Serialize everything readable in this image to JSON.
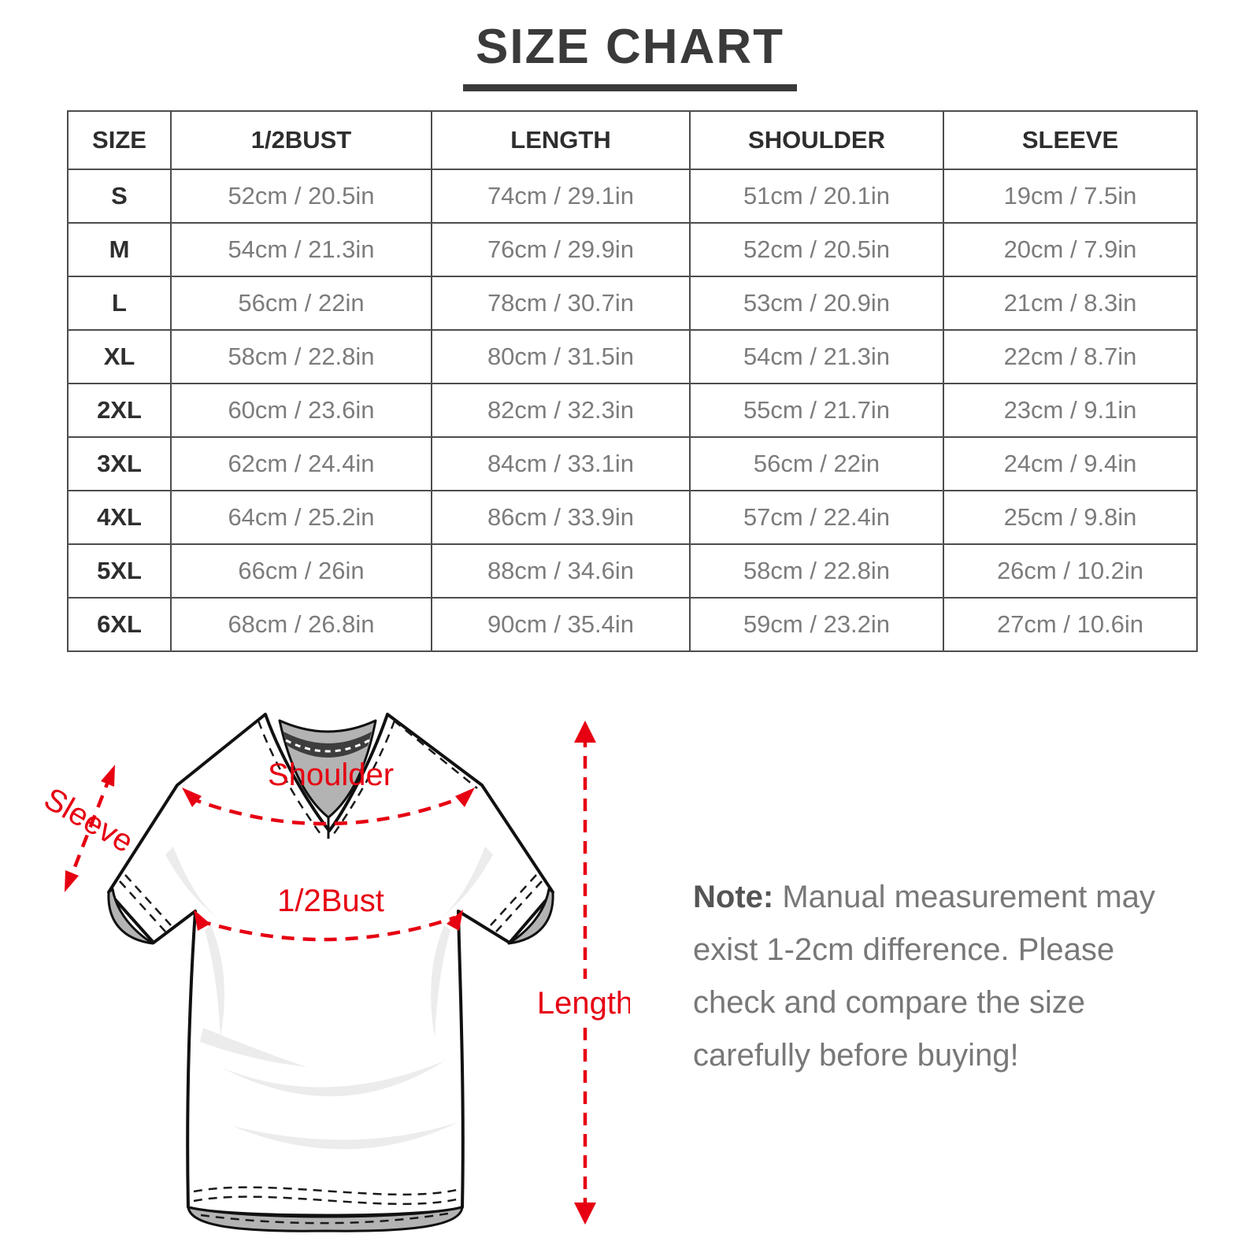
{
  "title": "SIZE CHART",
  "chart_data": {
    "type": "table",
    "title": "SIZE CHART",
    "columns": [
      "SIZE",
      "1/2BUST",
      "LENGTH",
      "SHOULDER",
      "SLEEVE"
    ],
    "rows": [
      [
        "S",
        "52cm / 20.5in",
        "74cm / 29.1in",
        "51cm / 20.1in",
        "19cm / 7.5in"
      ],
      [
        "M",
        "54cm / 21.3in",
        "76cm / 29.9in",
        "52cm / 20.5in",
        "20cm / 7.9in"
      ],
      [
        "L",
        "56cm / 22in",
        "78cm / 30.7in",
        "53cm / 20.9in",
        "21cm / 8.3in"
      ],
      [
        "XL",
        "58cm / 22.8in",
        "80cm / 31.5in",
        "54cm / 21.3in",
        "22cm / 8.7in"
      ],
      [
        "2XL",
        "60cm / 23.6in",
        "82cm / 32.3in",
        "55cm / 21.7in",
        "23cm / 9.1in"
      ],
      [
        "3XL",
        "62cm / 24.4in",
        "84cm / 33.1in",
        "56cm / 22in",
        "24cm / 9.4in"
      ],
      [
        "4XL",
        "64cm / 25.2in",
        "86cm / 33.9in",
        "57cm / 22.4in",
        "25cm / 9.8in"
      ],
      [
        "5XL",
        "66cm / 26in",
        "88cm / 34.6in",
        "58cm / 22.8in",
        "26cm / 10.2in"
      ],
      [
        "6XL",
        "68cm / 26.8in",
        "90cm / 35.4in",
        "59cm / 23.2in",
        "27cm / 10.6in"
      ]
    ]
  },
  "diagram": {
    "shoulder_label": "Shoulder",
    "bust_label": "1/2Bust",
    "sleeve_label": "Sleeve",
    "length_label": "Length",
    "accent_color": "#e60012"
  },
  "note": {
    "label": "Note:",
    "text": " Manual measurement may exist 1-2cm difference. Please check and compare the size carefully before buying!"
  }
}
